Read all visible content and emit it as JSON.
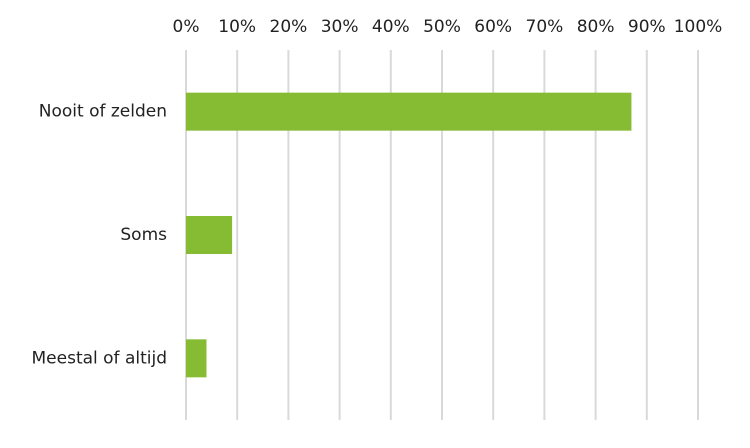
{
  "chart_data": {
    "type": "barh",
    "categories": [
      "Nooit of zelden",
      "Soms",
      "Meestal of altijd"
    ],
    "values": [
      87,
      9,
      4
    ],
    "color": "#86bc34",
    "xlim": [
      0,
      100
    ],
    "xticks": [
      {
        "value": 0,
        "label": "0%"
      },
      {
        "value": 10,
        "label": "10%"
      },
      {
        "value": 20,
        "label": "20%"
      },
      {
        "value": 30,
        "label": "30%"
      },
      {
        "value": 40,
        "label": "40%"
      },
      {
        "value": 50,
        "label": "50%"
      },
      {
        "value": 60,
        "label": "60%"
      },
      {
        "value": 70,
        "label": "70%"
      },
      {
        "value": 80,
        "label": "80%"
      },
      {
        "value": 90,
        "label": "90%"
      },
      {
        "value": 100,
        "label": "100%"
      }
    ],
    "grid": true
  }
}
